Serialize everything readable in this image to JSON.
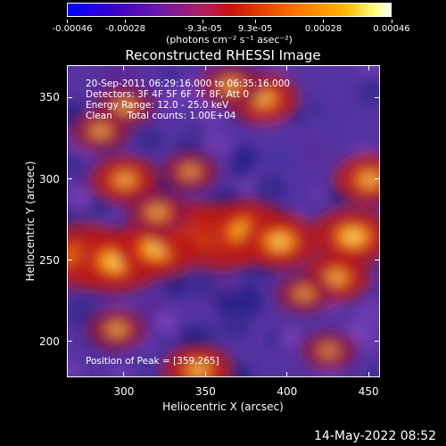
{
  "chart_data": {
    "type": "heatmap",
    "title": "Reconstructed RHESSI Image",
    "xlabel": "Heliocentric X (arcsec)",
    "ylabel": "Heliocentric Y (arcsec)",
    "xlim": [
      265,
      457
    ],
    "ylim": [
      178,
      370
    ],
    "x_ticks": [
      "300",
      "350",
      "400",
      "450"
    ],
    "y_ticks": [
      "200",
      "250",
      "300",
      "350"
    ],
    "colorbar": {
      "tick_labels": [
        "-0.00046",
        "-0.00028",
        "-9.3e-05",
        "9.3e-05",
        "0.00028",
        "0.00046"
      ],
      "units": "(photons cm⁻² s⁻¹ asec⁻²)"
    },
    "annotations": [
      "20-Sep-2011 06:29:16.000 to 06:35:16.000",
      "Detectors: 3F 4F 5F 6F 7F 8F, Att 0",
      "Energy Range: 12.0 - 25.0 keV",
      "Clean     Total counts: 1.00E+04"
    ],
    "peak_label": "Position of Peak = [359,265]",
    "peak": [
      359,
      265
    ],
    "sources": [
      {
        "x": 275,
        "y": 253,
        "intensity": 0.95
      },
      {
        "x": 295,
        "y": 250,
        "intensity": 0.9
      },
      {
        "x": 320,
        "y": 258,
        "intensity": 0.85
      },
      {
        "x": 338,
        "y": 270,
        "intensity": 0.7
      },
      {
        "x": 359,
        "y": 265,
        "intensity": 1.0
      },
      {
        "x": 375,
        "y": 268,
        "intensity": 0.9
      },
      {
        "x": 395,
        "y": 262,
        "intensity": 0.75
      },
      {
        "x": 440,
        "y": 265,
        "intensity": 0.8
      },
      {
        "x": 450,
        "y": 300,
        "intensity": 0.6
      },
      {
        "x": 430,
        "y": 240,
        "intensity": 0.55
      },
      {
        "x": 300,
        "y": 300,
        "intensity": 0.55
      },
      {
        "x": 320,
        "y": 280,
        "intensity": 0.5
      },
      {
        "x": 385,
        "y": 350,
        "intensity": 0.6
      },
      {
        "x": 365,
        "y": 358,
        "intensity": 0.5
      },
      {
        "x": 300,
        "y": 345,
        "intensity": 0.45
      },
      {
        "x": 285,
        "y": 330,
        "intensity": 0.45
      },
      {
        "x": 340,
        "y": 305,
        "intensity": 0.4
      },
      {
        "x": 295,
        "y": 208,
        "intensity": 0.45
      },
      {
        "x": 345,
        "y": 183,
        "intensity": 0.6
      },
      {
        "x": 425,
        "y": 195,
        "intensity": 0.35
      },
      {
        "x": 410,
        "y": 230,
        "intensity": 0.4
      }
    ],
    "grid": false
  },
  "footer": {
    "datestamp": "14-May-2022 08:52"
  }
}
